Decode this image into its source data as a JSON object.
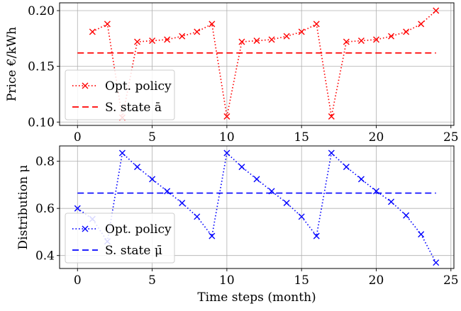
{
  "chart_data": [
    {
      "type": "line",
      "xlabel": "",
      "ylabel": "Price €/kWh",
      "xlim": [
        -1.2,
        25.2
      ],
      "ylim": [
        0.097,
        0.207
      ],
      "xticks": [
        0,
        5,
        10,
        15,
        20,
        25
      ],
      "xtick_labels": [
        "0",
        "5",
        "10",
        "15",
        "20",
        "25"
      ],
      "yticks": [
        0.1,
        0.15,
        0.2
      ],
      "ytick_labels": [
        "0.10",
        "0.15",
        "0.20"
      ],
      "grid": true,
      "legend_position": "lower-left",
      "series": [
        {
          "name": "Opt. policy",
          "color": "#ff0000",
          "style": "dotted",
          "marker": "x",
          "x": [
            1,
            2,
            3,
            4,
            5,
            6,
            7,
            8,
            9,
            10,
            11,
            12,
            13,
            14,
            15,
            16,
            17,
            18,
            19,
            20,
            21,
            22,
            23,
            24
          ],
          "y": [
            0.181,
            0.188,
            0.104,
            0.172,
            0.173,
            0.174,
            0.177,
            0.181,
            0.188,
            0.105,
            0.172,
            0.173,
            0.174,
            0.177,
            0.181,
            0.188,
            0.105,
            0.172,
            0.173,
            0.174,
            0.177,
            0.181,
            0.188,
            0.2
          ]
        },
        {
          "name": "S. state ā",
          "color": "#ff0000",
          "style": "dashed",
          "marker": "none",
          "x": [
            0,
            24
          ],
          "y": [
            0.162,
            0.162
          ]
        }
      ]
    },
    {
      "type": "line",
      "xlabel": "Time steps (month)",
      "ylabel": "Distribution μ",
      "xlim": [
        -1.2,
        25.2
      ],
      "ylim": [
        0.345,
        0.865
      ],
      "xticks": [
        0,
        5,
        10,
        15,
        20,
        25
      ],
      "xtick_labels": [
        "0",
        "5",
        "10",
        "15",
        "20",
        "25"
      ],
      "yticks": [
        0.4,
        0.6,
        0.8
      ],
      "ytick_labels": [
        "0.4",
        "0.6",
        "0.8"
      ],
      "grid": true,
      "legend_position": "lower-left",
      "series": [
        {
          "name": "Opt. policy",
          "color": "#0000ff",
          "style": "dotted",
          "marker": "x",
          "x": [
            0,
            1,
            2,
            3,
            4,
            5,
            6,
            7,
            8,
            9,
            10,
            11,
            12,
            13,
            14,
            15,
            16,
            17,
            18,
            19,
            20,
            21,
            22,
            23,
            24
          ],
          "y": [
            0.6,
            0.555,
            0.46,
            0.835,
            0.776,
            0.724,
            0.673,
            0.623,
            0.565,
            0.483,
            0.835,
            0.776,
            0.724,
            0.673,
            0.623,
            0.565,
            0.483,
            0.835,
            0.776,
            0.724,
            0.673,
            0.628,
            0.57,
            0.49,
            0.37
          ]
        },
        {
          "name": "S. state μ̄",
          "color": "#0000ff",
          "style": "dashed",
          "marker": "none",
          "x": [
            0,
            24
          ],
          "y": [
            0.665,
            0.665
          ]
        }
      ]
    }
  ]
}
